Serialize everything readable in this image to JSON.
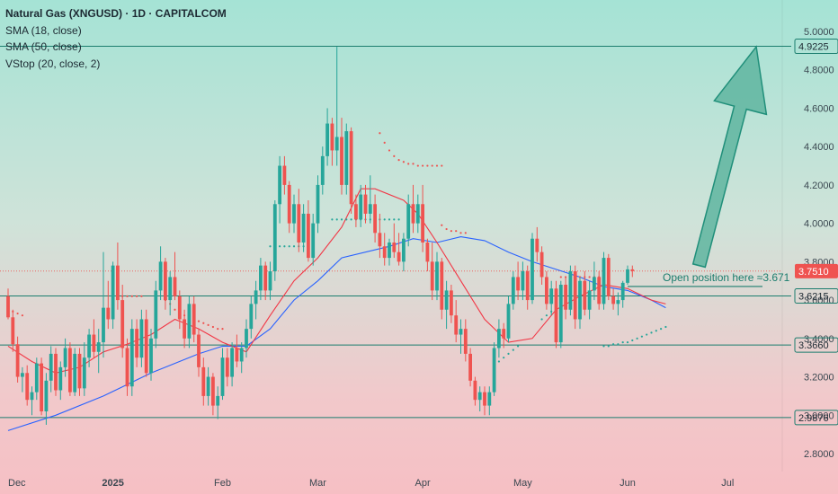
{
  "legend": {
    "title": "Natural Gas (XNGUSD) · 1D · CAPITALCOM",
    "sma18": "SMA (18, close)",
    "sma50": "SMA (50, close)",
    "vstop": "VStop (20, close, 2)"
  },
  "colors": {
    "up": "#26a69a",
    "down": "#ef5350",
    "sma18": "#f23645",
    "sma50": "#2962ff",
    "vstop_down": "#ef5350",
    "vstop_up": "#26a69a",
    "level": "#1b7d6e",
    "arrow_fill": "#5fb5a0",
    "arrow_stroke": "#208f7a"
  },
  "chart_data": {
    "type": "candlestick",
    "y_axis": {
      "ticks": [
        "5.0000",
        "4.8000",
        "4.6000",
        "4.4000",
        "4.2000",
        "4.0000",
        "3.8000",
        "3.6000",
        "3.4000",
        "3.2000",
        "3.0000",
        "2.8000"
      ],
      "tick_values": [
        5.0,
        4.8,
        4.6,
        4.4,
        4.2,
        4.0,
        3.8,
        3.6,
        3.4,
        3.2,
        3.0,
        2.8
      ],
      "range": [
        2.74,
        5.08
      ]
    },
    "x_axis": {
      "labels": [
        "Dec",
        "2025",
        "Feb",
        "Mar",
        "Apr",
        "May",
        "Jun",
        "Jul"
      ],
      "label_index": [
        0,
        22,
        45,
        65,
        87,
        108,
        130,
        151
      ],
      "bold": [
        false,
        true,
        false,
        false,
        false,
        false,
        false,
        false
      ]
    },
    "levels": [
      {
        "price": 4.9225,
        "label": "4.9225",
        "style": "box"
      },
      {
        "price": 3.751,
        "label": "3.7510",
        "style": "current"
      },
      {
        "price": 3.6215,
        "label": "3.6215",
        "style": "box"
      },
      {
        "price": 3.366,
        "label": "3.3660",
        "style": "box"
      },
      {
        "price": 2.9876,
        "label": "2.9876",
        "style": "box"
      }
    ],
    "annotation": {
      "text": "Open position here ≈3.671",
      "price": 3.671
    },
    "arrow": {
      "from": {
        "index": 145,
        "price": 3.78
      },
      "to": {
        "index": 157,
        "price": 4.92
      }
    },
    "candles": [
      [
        3.62,
        3.66,
        3.5,
        3.51
      ],
      [
        3.51,
        3.55,
        3.33,
        3.37
      ],
      [
        3.37,
        3.41,
        3.17,
        3.2
      ],
      [
        3.2,
        3.25,
        3.12,
        3.22
      ],
      [
        3.22,
        3.26,
        3.05,
        3.08
      ],
      [
        3.08,
        3.15,
        3.0,
        3.12
      ],
      [
        3.12,
        3.3,
        3.08,
        3.27
      ],
      [
        3.27,
        3.3,
        3.0,
        3.02
      ],
      [
        3.02,
        3.22,
        2.95,
        3.18
      ],
      [
        3.18,
        3.36,
        3.12,
        3.32
      ],
      [
        3.32,
        3.35,
        3.1,
        3.13
      ],
      [
        3.13,
        3.28,
        3.08,
        3.25
      ],
      [
        3.25,
        3.4,
        3.2,
        3.35
      ],
      [
        3.35,
        3.38,
        3.1,
        3.12
      ],
      [
        3.12,
        3.35,
        3.1,
        3.32
      ],
      [
        3.32,
        3.35,
        3.1,
        3.14
      ],
      [
        3.14,
        3.38,
        3.1,
        3.3
      ],
      [
        3.3,
        3.45,
        3.25,
        3.42
      ],
      [
        3.42,
        3.5,
        3.3,
        3.33
      ],
      [
        3.33,
        3.45,
        3.22,
        3.38
      ],
      [
        3.38,
        3.85,
        3.3,
        3.56
      ],
      [
        3.56,
        3.7,
        3.45,
        3.5
      ],
      [
        3.5,
        3.8,
        3.45,
        3.78
      ],
      [
        3.78,
        3.9,
        3.55,
        3.6
      ],
      [
        3.6,
        3.68,
        3.3,
        3.35
      ],
      [
        3.35,
        3.4,
        3.1,
        3.15
      ],
      [
        3.15,
        3.5,
        3.1,
        3.45
      ],
      [
        3.45,
        3.5,
        3.25,
        3.3
      ],
      [
        3.3,
        3.55,
        3.25,
        3.5
      ],
      [
        3.5,
        3.55,
        3.2,
        3.22
      ],
      [
        3.22,
        3.45,
        3.18,
        3.4
      ],
      [
        3.4,
        3.7,
        3.35,
        3.65
      ],
      [
        3.65,
        3.88,
        3.6,
        3.8
      ],
      [
        3.8,
        3.82,
        3.55,
        3.6
      ],
      [
        3.6,
        3.75,
        3.52,
        3.72
      ],
      [
        3.72,
        3.85,
        3.6,
        3.62
      ],
      [
        3.62,
        3.65,
        3.45,
        3.5
      ],
      [
        3.5,
        3.55,
        3.35,
        3.4
      ],
      [
        3.4,
        3.62,
        3.35,
        3.58
      ],
      [
        3.58,
        3.62,
        3.38,
        3.42
      ],
      [
        3.42,
        3.45,
        3.2,
        3.25
      ],
      [
        3.25,
        3.3,
        3.05,
        3.1
      ],
      [
        3.1,
        3.25,
        3.05,
        3.2
      ],
      [
        3.2,
        3.22,
        3.0,
        3.05
      ],
      [
        3.05,
        3.15,
        2.98,
        3.1
      ],
      [
        3.1,
        3.35,
        3.08,
        3.3
      ],
      [
        3.3,
        3.35,
        3.15,
        3.2
      ],
      [
        3.2,
        3.38,
        3.15,
        3.35
      ],
      [
        3.35,
        3.42,
        3.25,
        3.28
      ],
      [
        3.28,
        3.38,
        3.22,
        3.35
      ],
      [
        3.35,
        3.5,
        3.3,
        3.45
      ],
      [
        3.45,
        3.62,
        3.4,
        3.58
      ],
      [
        3.58,
        3.7,
        3.5,
        3.65
      ],
      [
        3.65,
        3.82,
        3.6,
        3.78
      ],
      [
        3.78,
        3.8,
        3.6,
        3.65
      ],
      [
        3.65,
        3.8,
        3.6,
        3.75
      ],
      [
        3.75,
        4.12,
        3.7,
        4.1
      ],
      [
        4.1,
        4.35,
        4.0,
        4.3
      ],
      [
        4.3,
        4.35,
        4.15,
        4.2
      ],
      [
        4.2,
        4.22,
        3.95,
        4.0
      ],
      [
        4.0,
        4.15,
        3.95,
        4.1
      ],
      [
        4.1,
        4.18,
        3.85,
        3.9
      ],
      [
        3.9,
        4.1,
        3.85,
        4.05
      ],
      [
        4.05,
        4.12,
        3.8,
        3.82
      ],
      [
        3.82,
        4.05,
        3.78,
        4.0
      ],
      [
        4.0,
        4.25,
        3.95,
        4.2
      ],
      [
        4.2,
        4.4,
        4.15,
        4.35
      ],
      [
        4.35,
        4.6,
        4.3,
        4.52
      ],
      [
        4.52,
        4.55,
        4.3,
        4.38
      ],
      [
        4.38,
        4.92,
        4.3,
        4.45
      ],
      [
        4.45,
        4.55,
        4.15,
        4.2
      ],
      [
        4.2,
        4.52,
        4.15,
        4.48
      ],
      [
        4.48,
        4.5,
        4.05,
        4.1
      ],
      [
        4.1,
        4.15,
        3.98,
        4.02
      ],
      [
        4.02,
        4.2,
        3.98,
        4.15
      ],
      [
        4.15,
        4.2,
        4.0,
        4.05
      ],
      [
        4.05,
        4.25,
        4.0,
        4.1
      ],
      [
        4.1,
        4.15,
        3.9,
        3.95
      ],
      [
        3.95,
        4.05,
        3.82,
        3.88
      ],
      [
        3.88,
        3.95,
        3.78,
        3.82
      ],
      [
        3.82,
        3.92,
        3.78,
        3.9
      ],
      [
        3.9,
        4.0,
        3.82,
        3.85
      ],
      [
        3.85,
        3.95,
        3.78,
        3.8
      ],
      [
        3.8,
        3.95,
        3.75,
        3.92
      ],
      [
        3.92,
        4.15,
        3.88,
        4.1
      ],
      [
        4.1,
        4.2,
        3.95,
        4.0
      ],
      [
        4.0,
        4.15,
        3.95,
        4.1
      ],
      [
        4.1,
        4.2,
        3.85,
        3.9
      ],
      [
        3.9,
        3.92,
        3.75,
        3.8
      ],
      [
        3.8,
        3.9,
        3.6,
        3.65
      ],
      [
        3.65,
        3.85,
        3.6,
        3.8
      ],
      [
        3.8,
        3.82,
        3.5,
        3.55
      ],
      [
        3.55,
        3.7,
        3.45,
        3.65
      ],
      [
        3.65,
        3.68,
        3.48,
        3.52
      ],
      [
        3.52,
        3.6,
        3.38,
        3.42
      ],
      [
        3.42,
        3.5,
        3.32,
        3.45
      ],
      [
        3.45,
        3.5,
        3.28,
        3.32
      ],
      [
        3.32,
        3.35,
        3.15,
        3.18
      ],
      [
        3.18,
        3.2,
        3.05,
        3.08
      ],
      [
        3.08,
        3.15,
        3.02,
        3.12
      ],
      [
        3.12,
        3.15,
        3.0,
        3.05
      ],
      [
        3.05,
        3.15,
        3.0,
        3.12
      ],
      [
        3.12,
        3.38,
        3.1,
        3.35
      ],
      [
        3.35,
        3.5,
        3.3,
        3.45
      ],
      [
        3.45,
        3.48,
        3.35,
        3.4
      ],
      [
        3.4,
        3.62,
        3.38,
        3.58
      ],
      [
        3.58,
        3.75,
        3.55,
        3.72
      ],
      [
        3.72,
        3.8,
        3.6,
        3.65
      ],
      [
        3.65,
        3.8,
        3.6,
        3.75
      ],
      [
        3.75,
        3.78,
        3.55,
        3.6
      ],
      [
        3.6,
        3.95,
        3.58,
        3.92
      ],
      [
        3.92,
        3.98,
        3.8,
        3.85
      ],
      [
        3.85,
        3.88,
        3.68,
        3.72
      ],
      [
        3.72,
        3.75,
        3.55,
        3.58
      ],
      [
        3.58,
        3.7,
        3.52,
        3.66
      ],
      [
        3.66,
        3.7,
        3.35,
        3.38
      ],
      [
        3.38,
        3.7,
        3.35,
        3.68
      ],
      [
        3.68,
        3.72,
        3.5,
        3.55
      ],
      [
        3.55,
        3.78,
        3.52,
        3.75
      ],
      [
        3.75,
        3.78,
        3.45,
        3.5
      ],
      [
        3.5,
        3.72,
        3.45,
        3.7
      ],
      [
        3.7,
        3.75,
        3.52,
        3.55
      ],
      [
        3.55,
        3.7,
        3.5,
        3.65
      ],
      [
        3.65,
        3.8,
        3.6,
        3.72
      ],
      [
        3.72,
        3.75,
        3.55,
        3.58
      ],
      [
        3.58,
        3.85,
        3.55,
        3.82
      ],
      [
        3.82,
        3.84,
        3.6,
        3.62
      ],
      [
        3.62,
        3.66,
        3.55,
        3.58
      ],
      [
        3.58,
        3.64,
        3.52,
        3.6
      ],
      [
        3.6,
        3.7,
        3.56,
        3.69
      ],
      [
        3.69,
        3.78,
        3.68,
        3.76
      ],
      [
        3.76,
        3.78,
        3.72,
        3.751
      ]
    ],
    "sma18": [
      [
        0,
        3.36
      ],
      [
        5,
        3.28
      ],
      [
        10,
        3.22
      ],
      [
        15,
        3.25
      ],
      [
        20,
        3.33
      ],
      [
        25,
        3.37
      ],
      [
        30,
        3.42
      ],
      [
        35,
        3.5
      ],
      [
        40,
        3.45
      ],
      [
        45,
        3.38
      ],
      [
        50,
        3.33
      ],
      [
        55,
        3.52
      ],
      [
        60,
        3.7
      ],
      [
        65,
        3.82
      ],
      [
        70,
        3.98
      ],
      [
        74,
        4.18
      ],
      [
        77,
        4.18
      ],
      [
        83,
        4.12
      ],
      [
        86,
        4.05
      ],
      [
        90,
        3.9
      ],
      [
        95,
        3.7
      ],
      [
        100,
        3.5
      ],
      [
        105,
        3.38
      ],
      [
        110,
        3.4
      ],
      [
        115,
        3.55
      ],
      [
        120,
        3.62
      ],
      [
        125,
        3.68
      ],
      [
        130,
        3.66
      ],
      [
        135,
        3.6
      ],
      [
        138,
        3.58
      ]
    ],
    "sma50": [
      [
        0,
        2.92
      ],
      [
        10,
        3.0
      ],
      [
        20,
        3.1
      ],
      [
        30,
        3.22
      ],
      [
        40,
        3.32
      ],
      [
        45,
        3.36
      ],
      [
        50,
        3.36
      ],
      [
        55,
        3.45
      ],
      [
        60,
        3.6
      ],
      [
        65,
        3.7
      ],
      [
        70,
        3.82
      ],
      [
        80,
        3.88
      ],
      [
        85,
        3.92
      ],
      [
        90,
        3.9
      ],
      [
        95,
        3.93
      ],
      [
        100,
        3.91
      ],
      [
        105,
        3.85
      ],
      [
        110,
        3.8
      ],
      [
        115,
        3.76
      ],
      [
        120,
        3.72
      ],
      [
        125,
        3.67
      ],
      [
        130,
        3.65
      ],
      [
        135,
        3.6
      ],
      [
        138,
        3.56
      ]
    ],
    "vstop": [
      {
        "side": "down",
        "from": 0,
        "to": 3,
        "values": [
          3.55,
          3.54,
          3.53,
          3.52
        ]
      },
      {
        "side": "down",
        "from": 24,
        "to": 28,
        "values": [
          3.62,
          3.62,
          3.62,
          3.62,
          3.62
        ]
      },
      {
        "side": "down",
        "from": 33,
        "to": 45,
        "values": [
          3.6,
          3.58,
          3.55,
          3.53,
          3.52,
          3.5,
          3.5,
          3.49,
          3.48,
          3.47,
          3.46,
          3.45,
          3.45
        ]
      },
      {
        "side": "up",
        "from": 55,
        "to": 64,
        "values": [
          3.88,
          3.88,
          3.88,
          3.88,
          3.88,
          3.88,
          3.88,
          3.88,
          3.88,
          3.88
        ]
      },
      {
        "side": "up",
        "from": 68,
        "to": 82,
        "values": [
          4.02,
          4.02,
          4.02,
          4.02,
          4.02,
          4.02,
          4.02,
          4.02,
          4.02,
          4.02,
          4.02,
          4.02,
          4.02,
          4.02,
          4.02
        ]
      },
      {
        "side": "down",
        "from": 78,
        "to": 91,
        "values": [
          4.47,
          4.42,
          4.38,
          4.35,
          4.33,
          4.32,
          4.31,
          4.31,
          4.3,
          4.3,
          4.3,
          4.3,
          4.3,
          4.3
        ]
      },
      {
        "side": "down",
        "from": 91,
        "to": 96,
        "values": [
          3.99,
          3.97,
          3.96,
          3.96,
          3.95,
          3.95
        ]
      },
      {
        "side": "up",
        "from": 103,
        "to": 107,
        "values": [
          3.28,
          3.3,
          3.32,
          3.34,
          3.36
        ]
      },
      {
        "side": "up",
        "from": 112,
        "to": 118,
        "values": [
          3.5,
          3.52,
          3.54,
          3.55,
          3.56,
          3.57,
          3.58
        ]
      },
      {
        "side": "down",
        "from": 116,
        "to": 125,
        "values": [
          3.72,
          3.72,
          3.72,
          3.72,
          3.72,
          3.72,
          3.72,
          3.72,
          3.72,
          3.72
        ]
      },
      {
        "side": "up",
        "from": 125,
        "to": 138,
        "values": [
          3.36,
          3.36,
          3.37,
          3.37,
          3.38,
          3.38,
          3.39,
          3.4,
          3.41,
          3.42,
          3.43,
          3.44,
          3.45,
          3.46
        ]
      }
    ]
  }
}
